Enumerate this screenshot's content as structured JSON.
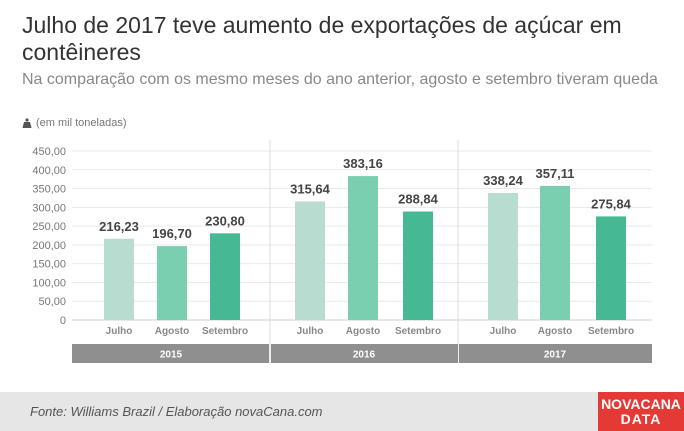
{
  "header": {
    "title": "Julho de 2017 teve aumento de exportações de açúcar em contêineres",
    "subtitle": "Na comparação com os mesmo meses do ano anterior, agosto e setembro tiveram queda",
    "unit": "(em mil toneladas)",
    "unit_icon": "weight-icon"
  },
  "footer": {
    "source": "Fonte: Williams Brazil / Elaboração novaCana.com",
    "logo_line1": "NOVACANA",
    "logo_line2": "DATA",
    "logo_color": "#e53935"
  },
  "chart_data": {
    "type": "bar",
    "ylim": [
      0,
      450
    ],
    "yticks": [
      "450,00",
      "400,00",
      "350,00",
      "300,00",
      "250,00",
      "200,00",
      "150,00",
      "100,00",
      "50,00",
      "0"
    ],
    "ytick_values": [
      450,
      400,
      350,
      300,
      250,
      200,
      150,
      100,
      50,
      0
    ],
    "grid": true,
    "colors": [
      "#b8ddd0",
      "#79cfb0",
      "#46b994"
    ],
    "groups": [
      {
        "year": "2015",
        "categories": [
          "Julho",
          "Agosto",
          "Setembro"
        ],
        "values": [
          216.23,
          196.7,
          230.8
        ],
        "labels": [
          "216,23",
          "196,70",
          "230,80"
        ]
      },
      {
        "year": "2016",
        "categories": [
          "Julho",
          "Agosto",
          "Setembro"
        ],
        "values": [
          315.64,
          383.16,
          288.84
        ],
        "labels": [
          "315,64",
          "383,16",
          "288,84"
        ]
      },
      {
        "year": "2017",
        "categories": [
          "Julho",
          "Agosto",
          "Setembro"
        ],
        "values": [
          338.24,
          357.11,
          275.84
        ],
        "labels": [
          "338,24",
          "357,11",
          "275,84"
        ]
      }
    ]
  }
}
